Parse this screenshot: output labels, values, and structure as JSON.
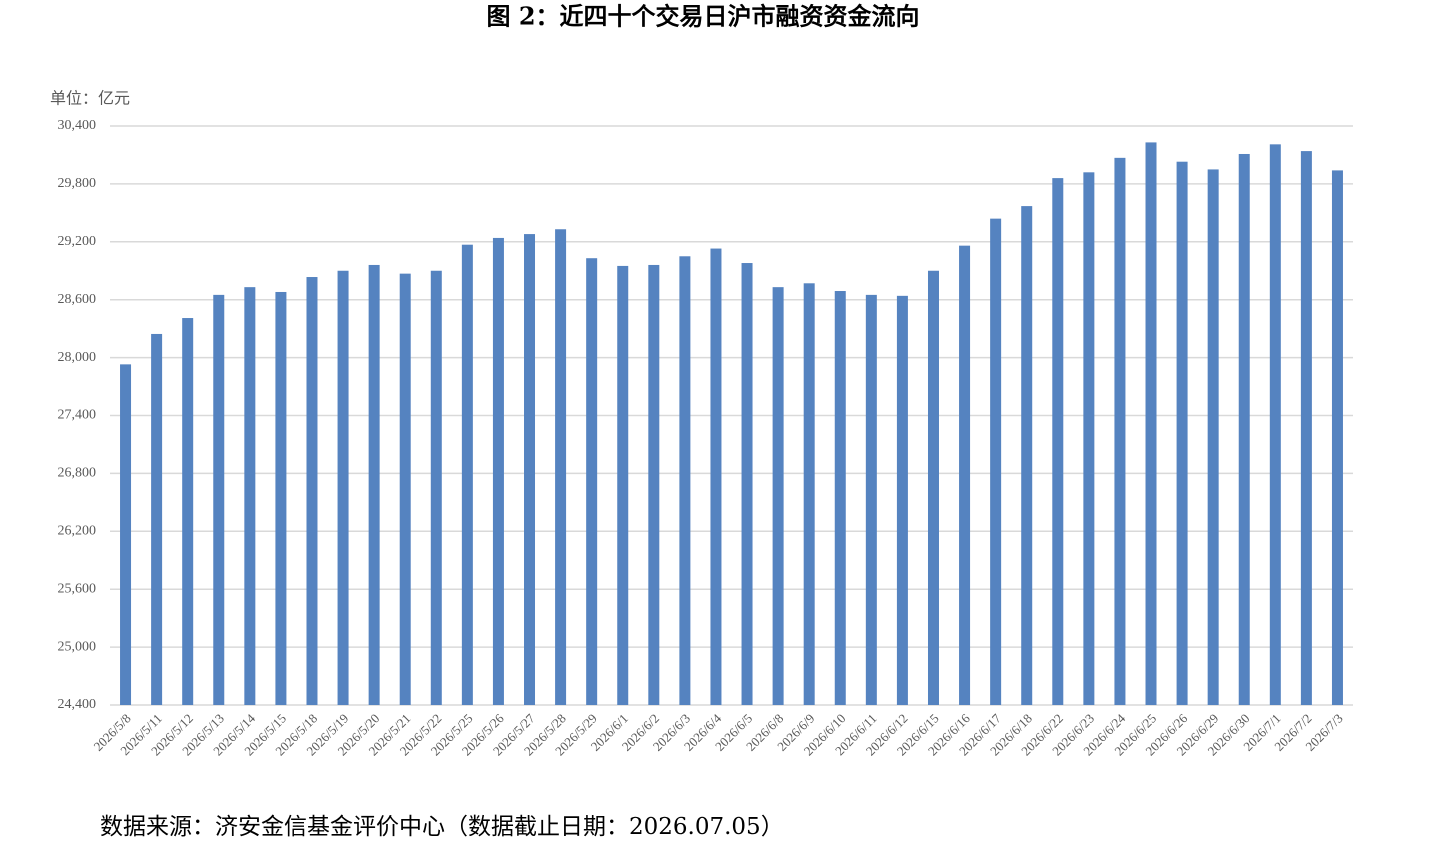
{
  "chart_data": {
    "type": "bar",
    "title": "图 2：近四十个交易日沪市融资资金流向",
    "y_label": "单位：亿元",
    "source": "数据来源：济安金信基金评价中心（数据截止日期：2026.07.05）",
    "categories": [
      "2026/5/8",
      "2026/5/11",
      "2026/5/12",
      "2026/5/13",
      "2026/5/14",
      "2026/5/15",
      "2026/5/18",
      "2026/5/19",
      "2026/5/20",
      "2026/5/21",
      "2026/5/22",
      "2026/5/25",
      "2026/5/26",
      "2026/5/27",
      "2026/5/28",
      "2026/5/29",
      "2026/6/1",
      "2026/6/2",
      "2026/6/3",
      "2026/6/4",
      "2026/6/5",
      "2026/6/8",
      "2026/6/9",
      "2026/6/10",
      "2026/6/11",
      "2026/6/12",
      "2026/6/15",
      "2026/6/16",
      "2026/6/17",
      "2026/6/18",
      "2026/6/22",
      "2026/6/23",
      "2026/6/24",
      "2026/6/25",
      "2026/6/26",
      "2026/6/29",
      "2026/6/30",
      "2026/7/1",
      "2026/7/2",
      "2026/7/3"
    ],
    "values": [
      27930,
      28245,
      28410,
      28650,
      28730,
      28680,
      28835,
      28900,
      28960,
      28870,
      28900,
      29170,
      29240,
      29280,
      29330,
      29030,
      28950,
      28960,
      29050,
      29130,
      28980,
      28730,
      28770,
      28690,
      28650,
      28640,
      28900,
      29160,
      29440,
      29570,
      29860,
      29920,
      30070,
      30230,
      30030,
      29950,
      30110,
      30210,
      30140,
      29940
    ],
    "color": "#5583c0",
    "ylim": [
      24400,
      30400
    ],
    "yticks": [
      {
        "value": 24400,
        "label": "24,400"
      },
      {
        "value": 25000,
        "label": "25,000"
      },
      {
        "value": 25600,
        "label": "25,600"
      },
      {
        "value": 26200,
        "label": "26,200"
      },
      {
        "value": 26800,
        "label": "26,800"
      },
      {
        "value": 27400,
        "label": "27,400"
      },
      {
        "value": 28000,
        "label": "28,000"
      },
      {
        "value": 28600,
        "label": "28,600"
      },
      {
        "value": 29200,
        "label": "29,200"
      },
      {
        "value": 29800,
        "label": "29,800"
      },
      {
        "value": 30400,
        "label": "30,400"
      }
    ],
    "grid": true
  }
}
